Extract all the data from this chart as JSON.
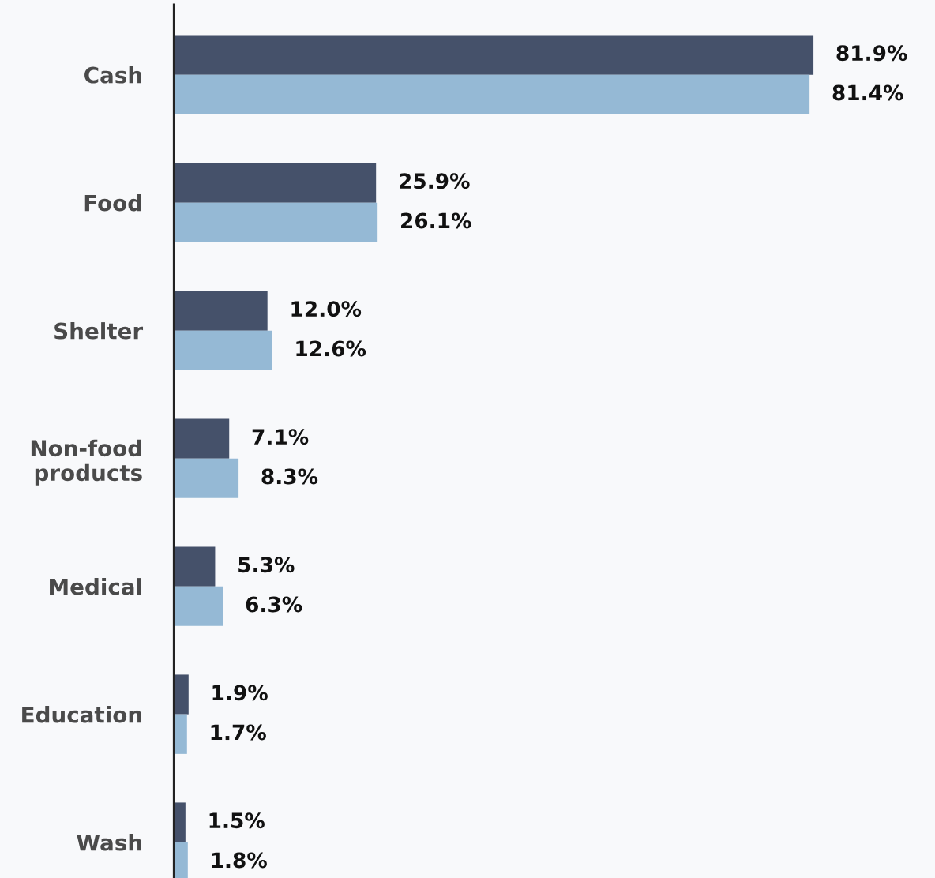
{
  "chart_data": {
    "type": "bar",
    "orientation": "horizontal",
    "categories": [
      "Cash",
      "Food",
      "Shelter",
      "Non-food\nproducts",
      "Medical",
      "Education",
      "Wash"
    ],
    "series": [
      {
        "color": "#45516a",
        "values": [
          81.9,
          25.9,
          12.0,
          7.1,
          5.3,
          1.9,
          1.5
        ],
        "value_labels": [
          "81.9%",
          "25.9%",
          "12.0%",
          "7.1%",
          "5.3%",
          "1.9%",
          "1.5%"
        ]
      },
      {
        "color": "#95b9d5",
        "values": [
          81.4,
          26.1,
          12.6,
          8.3,
          6.3,
          1.7,
          1.8
        ],
        "value_labels": [
          "81.4%",
          "26.1%",
          "12.6%",
          "8.3%",
          "6.3%",
          "1.7%",
          "1.8%"
        ]
      }
    ],
    "grid": false,
    "legend": false
  }
}
